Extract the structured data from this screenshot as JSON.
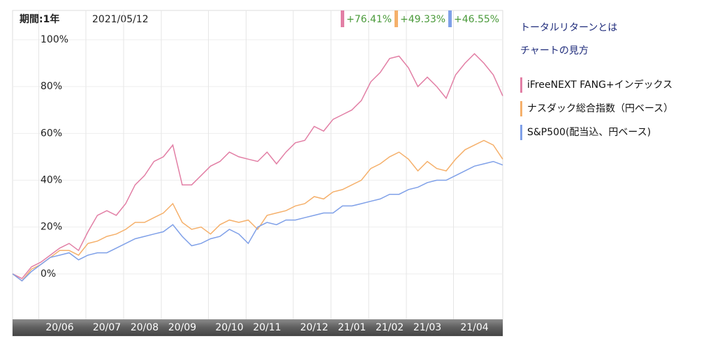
{
  "chart_data": {
    "type": "line",
    "period": "期間:1年",
    "date": "2021/05/12",
    "categories": [
      null,
      null,
      null,
      null,
      null,
      "20/06",
      null,
      null,
      null,
      null,
      "20/07",
      null,
      null,
      null,
      "20/08",
      null,
      null,
      null,
      "20/09",
      null,
      null,
      null,
      null,
      "20/10",
      null,
      null,
      null,
      "20/11",
      null,
      null,
      null,
      null,
      "20/12",
      null,
      null,
      null,
      "21/01",
      null,
      null,
      null,
      "21/02",
      null,
      null,
      null,
      "21/03",
      null,
      null,
      null,
      null,
      "21/04",
      null,
      null,
      null
    ],
    "series": [
      {
        "name": "iFreeNEXT FANG+インデックス",
        "color": "#e27fa5",
        "return": "+76.41%",
        "values": [
          0,
          -2,
          3,
          5,
          8,
          11,
          13,
          10,
          18,
          25,
          27,
          25,
          30,
          38,
          42,
          48,
          50,
          55,
          38,
          38,
          42,
          46,
          48,
          52,
          50,
          49,
          48,
          52,
          47,
          52,
          56,
          57,
          63,
          61,
          66,
          68,
          70,
          74,
          82,
          86,
          92,
          93,
          88,
          80,
          84,
          80,
          75,
          85,
          90,
          94,
          90,
          85,
          76
        ]
      },
      {
        "name": "ナスダック総合指数（円ベース）",
        "color": "#f5b06b",
        "return": "+49.33%",
        "values": [
          0,
          -3,
          2,
          4,
          7,
          10,
          10,
          8,
          13,
          14,
          16,
          17,
          19,
          22,
          22,
          24,
          26,
          30,
          22,
          19,
          20,
          17,
          21,
          23,
          22,
          23,
          19,
          25,
          26,
          27,
          29,
          30,
          33,
          32,
          35,
          36,
          38,
          40,
          45,
          47,
          50,
          52,
          49,
          44,
          48,
          45,
          44,
          49,
          53,
          55,
          57,
          55,
          49
        ]
      },
      {
        "name": "S&P500(配当込、円ベース)",
        "color": "#7fa0e8",
        "return": "+46.55%",
        "values": [
          0,
          -3,
          1,
          4,
          7,
          8,
          9,
          6,
          8,
          9,
          9,
          11,
          13,
          15,
          16,
          17,
          18,
          21,
          16,
          12,
          13,
          15,
          16,
          19,
          17,
          13,
          20,
          22,
          21,
          23,
          23,
          24,
          25,
          26,
          26,
          29,
          29,
          30,
          31,
          32,
          34,
          34,
          36,
          37,
          39,
          40,
          40,
          42,
          44,
          46,
          47,
          48,
          46.5
        ]
      }
    ],
    "ylim": [
      -19.4,
      112.5
    ],
    "yticks": [
      {
        "value": 0,
        "label": "0%"
      },
      {
        "value": 20,
        "label": "20%"
      },
      {
        "value": 40,
        "label": "40%"
      },
      {
        "value": 60,
        "label": "60%"
      },
      {
        "value": 80,
        "label": "80%"
      },
      {
        "value": 100,
        "label": "100%"
      }
    ],
    "grid": true
  },
  "links": [
    "トータルリターンとは",
    "チャートの見方"
  ]
}
